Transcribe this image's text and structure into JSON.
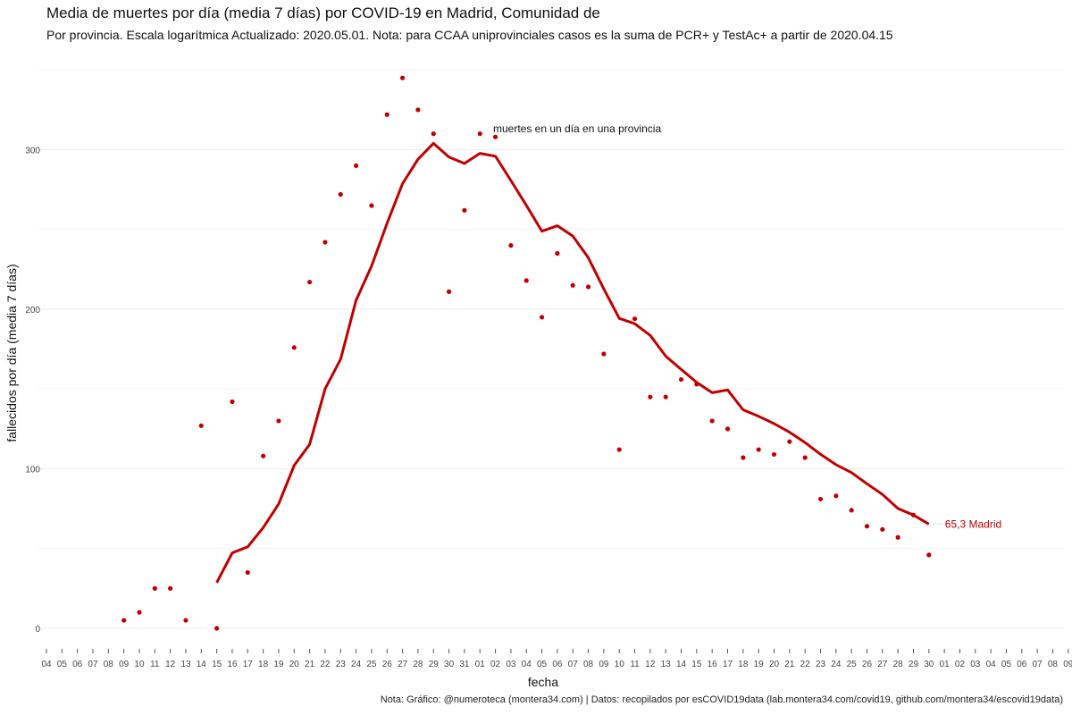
{
  "chart_data": {
    "type": "line",
    "title": "Media de muertes por día (media 7 días) por COVID-19 en Madrid, Comunidad de",
    "subtitle": "Por provincia. Escala logarítmica  Actualizado: 2020.05.01. Nota: para CCAA uniprovinciales casos es la suma de PCR+ y TestAc+ a partir de 2020.04.15",
    "xlabel": "fecha",
    "ylabel": "fallecidos por día (media 7 días)",
    "caption": "Nota: Gráfico: @numeroteca (montera34.com) | Datos: recopilados por esCOVID19data (lab.montera34.com/covid19, github.com/montera34/escovid19data)",
    "annotation": "muertes en un día en una provincia",
    "end_label": "65,3 Madrid",
    "color": "#c00000",
    "ylim": [
      -20,
      352
    ],
    "yticks": [
      0,
      100,
      200,
      300
    ],
    "x_ticks": [
      "04",
      "05",
      "06",
      "07",
      "08",
      "09",
      "10",
      "11",
      "12",
      "13",
      "14",
      "15",
      "16",
      "17",
      "18",
      "19",
      "20",
      "21",
      "22",
      "23",
      "24",
      "25",
      "26",
      "27",
      "28",
      "29",
      "30",
      "31",
      "01",
      "02",
      "03",
      "04",
      "05",
      "06",
      "07",
      "08",
      "09",
      "10",
      "11",
      "12",
      "13",
      "14",
      "15",
      "16",
      "17",
      "18",
      "19",
      "20",
      "21",
      "22",
      "23",
      "24",
      "25",
      "26",
      "27",
      "28",
      "29",
      "30",
      "01",
      "02",
      "03",
      "04",
      "05",
      "06",
      "07",
      "08",
      "09"
    ],
    "series": [
      {
        "name": "Madrid",
        "kind": "line",
        "start_index": 11,
        "values": [
          28.6,
          47.3,
          51.1,
          63.1,
          77.9,
          102.1,
          115.3,
          150.1,
          168.7,
          205.6,
          227.0,
          253.9,
          278.7,
          294.0,
          304.0,
          295.4,
          291.4,
          297.7,
          295.9,
          280.7,
          265.1,
          248.9,
          252.3,
          245.9,
          232.3,
          212.7,
          194.3,
          190.9,
          183.6,
          170.6,
          162.3,
          154.1,
          147.7,
          149.4,
          137.0,
          132.9,
          128.3,
          122.9,
          116.4,
          109.1,
          102.6,
          97.6,
          90.6,
          83.9,
          75.1,
          71.0,
          65.3
        ]
      },
      {
        "name": "muertes en un día en una provincia",
        "kind": "points",
        "start_index": 5,
        "values": [
          5,
          10,
          25,
          25,
          5,
          127,
          0,
          142,
          35,
          108,
          130,
          176,
          217,
          242,
          272,
          290,
          265,
          322,
          345,
          325,
          310,
          211,
          262,
          310,
          308,
          240,
          218,
          195,
          235,
          215,
          214,
          172,
          112,
          194,
          145,
          145,
          156,
          153,
          130,
          125,
          107,
          112,
          109,
          117,
          107,
          81,
          83,
          74,
          64,
          62,
          57,
          71,
          46
        ]
      }
    ]
  }
}
